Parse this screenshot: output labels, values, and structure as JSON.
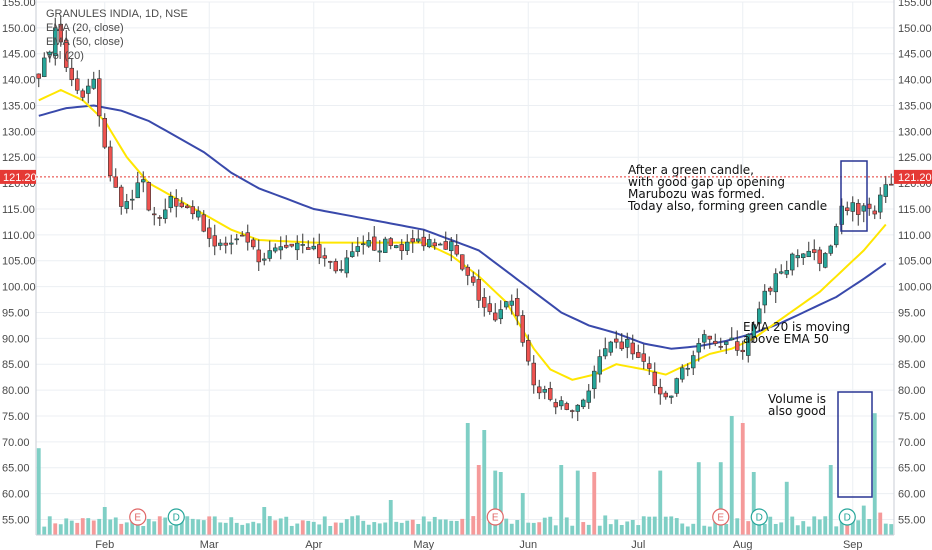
{
  "chart_data": {
    "type": "candlestick",
    "title": "GRANULES INDIA, 1D, NSE",
    "legend": [
      "EMA (20, close)",
      "EMA (50, close)",
      "Vol (20)"
    ],
    "ylim": [
      52,
      155
    ],
    "yticks": [
      55,
      60,
      65,
      70,
      75,
      80,
      85,
      90,
      95,
      100,
      105,
      110,
      115,
      120,
      125,
      130,
      135,
      140,
      145,
      150,
      155
    ],
    "xlabels": [
      "Feb",
      "Mar",
      "Apr",
      "May",
      "Jun",
      "Jul",
      "Aug",
      "Sep"
    ],
    "xlabel_pos": [
      12,
      31,
      50,
      70,
      89,
      109,
      128,
      148
    ],
    "current_price": {
      "value": 121.2,
      "label": "121.20"
    },
    "grid": true,
    "candle_anchors": [
      [
        0,
        141
      ],
      [
        3,
        149
      ],
      [
        5,
        143
      ],
      [
        8,
        136
      ],
      [
        10,
        139
      ],
      [
        12,
        127
      ],
      [
        13,
        121
      ],
      [
        15,
        116
      ],
      [
        17,
        118
      ],
      [
        19,
        120
      ],
      [
        20,
        116
      ],
      [
        22,
        114
      ],
      [
        24,
        117
      ],
      [
        27,
        116
      ],
      [
        30,
        112
      ],
      [
        32,
        108
      ],
      [
        35,
        108
      ],
      [
        38,
        109
      ],
      [
        40,
        104
      ],
      [
        43,
        107
      ],
      [
        45,
        108
      ],
      [
        48,
        109
      ],
      [
        51,
        106
      ],
      [
        55,
        103
      ],
      [
        57,
        106
      ],
      [
        60,
        108
      ],
      [
        63,
        108
      ],
      [
        67,
        108
      ],
      [
        70,
        109
      ],
      [
        73,
        109
      ],
      [
        75,
        108
      ],
      [
        77,
        103
      ],
      [
        79,
        100
      ],
      [
        81,
        96
      ],
      [
        83,
        93
      ],
      [
        86,
        98
      ],
      [
        88,
        90
      ],
      [
        90,
        81
      ],
      [
        93,
        78
      ],
      [
        95,
        77
      ],
      [
        97,
        76
      ],
      [
        100,
        80
      ],
      [
        102,
        86
      ],
      [
        104,
        88
      ],
      [
        107,
        89
      ],
      [
        109,
        86
      ],
      [
        111,
        84
      ],
      [
        113,
        78
      ],
      [
        115,
        79
      ],
      [
        117,
        84
      ],
      [
        120,
        88
      ],
      [
        122,
        91
      ],
      [
        124,
        89
      ],
      [
        126,
        89
      ],
      [
        128,
        88
      ],
      [
        130,
        92
      ],
      [
        132,
        98
      ],
      [
        134,
        102
      ],
      [
        136,
        104
      ],
      [
        138,
        106
      ],
      [
        140,
        107
      ],
      [
        142,
        104
      ],
      [
        144,
        109
      ],
      [
        146,
        115
      ],
      [
        148,
        116
      ],
      [
        149,
        113
      ],
      [
        150,
        115
      ],
      [
        152,
        113
      ],
      [
        154,
        121
      ]
    ],
    "ema20_anchors": [
      [
        0,
        136
      ],
      [
        4,
        138
      ],
      [
        8,
        136
      ],
      [
        12,
        132
      ],
      [
        16,
        125
      ],
      [
        20,
        120
      ],
      [
        25,
        117
      ],
      [
        30,
        114
      ],
      [
        35,
        111
      ],
      [
        40,
        109
      ],
      [
        50,
        108.5
      ],
      [
        60,
        108.5
      ],
      [
        70,
        108.5
      ],
      [
        75,
        106
      ],
      [
        80,
        102
      ],
      [
        85,
        97
      ],
      [
        90,
        88
      ],
      [
        93,
        84
      ],
      [
        97,
        82
      ],
      [
        101,
        83
      ],
      [
        105,
        85
      ],
      [
        110,
        84
      ],
      [
        114,
        83
      ],
      [
        118,
        85
      ],
      [
        122,
        87
      ],
      [
        126,
        88
      ],
      [
        130,
        90
      ],
      [
        134,
        93
      ],
      [
        138,
        96
      ],
      [
        142,
        99
      ],
      [
        146,
        103
      ],
      [
        150,
        107
      ],
      [
        154,
        112
      ]
    ],
    "ema50_anchors": [
      [
        0,
        133
      ],
      [
        5,
        134.5
      ],
      [
        10,
        135
      ],
      [
        15,
        134
      ],
      [
        20,
        132
      ],
      [
        25,
        129
      ],
      [
        30,
        126
      ],
      [
        35,
        122
      ],
      [
        40,
        119
      ],
      [
        45,
        117
      ],
      [
        50,
        115
      ],
      [
        55,
        114
      ],
      [
        60,
        113
      ],
      [
        65,
        112
      ],
      [
        70,
        111
      ],
      [
        75,
        109
      ],
      [
        80,
        107
      ],
      [
        85,
        103
      ],
      [
        90,
        99
      ],
      [
        95,
        95
      ],
      [
        100,
        92.5
      ],
      [
        105,
        91
      ],
      [
        110,
        89
      ],
      [
        115,
        88
      ],
      [
        120,
        88.5
      ],
      [
        125,
        89.5
      ],
      [
        130,
        91
      ],
      [
        135,
        93
      ],
      [
        140,
        95.5
      ],
      [
        145,
        98
      ],
      [
        150,
        101.5
      ],
      [
        154,
        104.5
      ]
    ],
    "volume_spikes": [
      [
        0,
        0.62
      ],
      [
        12,
        0.2
      ],
      [
        25,
        0.18
      ],
      [
        41,
        0.2
      ],
      [
        58,
        0.14
      ],
      [
        64,
        0.25
      ],
      [
        78,
        0.8
      ],
      [
        80,
        0.5
      ],
      [
        81,
        0.75
      ],
      [
        83,
        0.46
      ],
      [
        84,
        0.45
      ],
      [
        88,
        0.3
      ],
      [
        95,
        0.5
      ],
      [
        98,
        0.46
      ],
      [
        101,
        0.45
      ],
      [
        113,
        0.46
      ],
      [
        120,
        0.52
      ],
      [
        124,
        0.52
      ],
      [
        126,
        0.85
      ],
      [
        128,
        0.8
      ],
      [
        130,
        0.45
      ],
      [
        136,
        0.38
      ],
      [
        144,
        0.5
      ],
      [
        150,
        0.21
      ],
      [
        152,
        0.87
      ],
      [
        153,
        0.16
      ]
    ],
    "volume_red_pct": [
      3,
      7,
      8,
      10,
      15,
      22,
      31,
      43,
      48,
      54,
      68,
      77,
      79,
      80,
      91,
      99,
      101,
      128,
      129,
      147,
      153
    ],
    "events": [
      {
        "label": "E",
        "pos": 18,
        "color": "#e06666"
      },
      {
        "label": "D",
        "pos": 25,
        "color": "#26a69a"
      },
      {
        "label": "E",
        "pos": 83,
        "color": "#e06666"
      },
      {
        "label": "E",
        "pos": 124,
        "color": "#e06666"
      },
      {
        "label": "D",
        "pos": 131,
        "color": "#26a69a"
      },
      {
        "label": "D",
        "pos": 147,
        "color": "#26a69a"
      }
    ],
    "annotations": {
      "candle_note": [
        "After a green candle,",
        "with  good gap up opening",
        "Marubozu was formed.",
        "Today also, forming green candle"
      ],
      "ema_note": [
        "EMA 20 is moving",
        "above EMA 50"
      ],
      "volume_note": [
        "Volume is",
        "also good"
      ]
    },
    "colors": {
      "up": "#26a69a",
      "down": "#ef5350",
      "up_volume": "#7fcfc5",
      "down_volume": "#f59a9a",
      "ema20": "#ffe600",
      "ema50": "#3949ab",
      "box": "#283593",
      "price_line": "#e53935"
    }
  }
}
